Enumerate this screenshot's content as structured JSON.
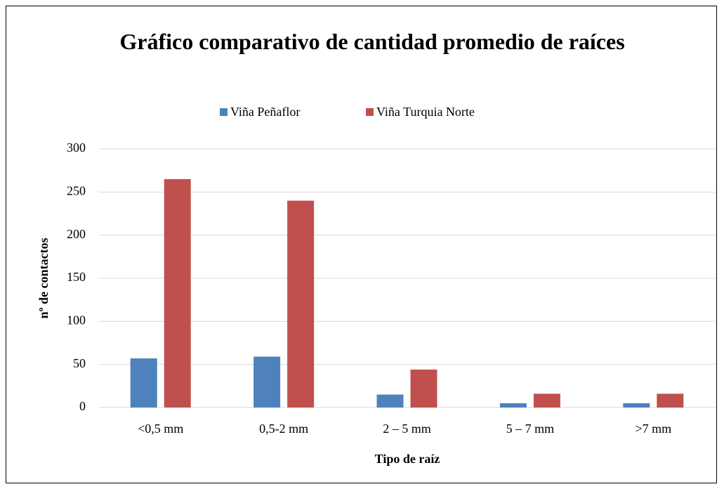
{
  "chart_data": {
    "type": "bar",
    "title": "Gráfico comparativo de cantidad promedio de raíces",
    "xlabel": "Tipo de raíz",
    "ylabel": "nº de contactos",
    "categories": [
      "<0,5 mm",
      "0,5-2 mm",
      "2 – 5 mm",
      "5 – 7 mm",
      ">7 mm"
    ],
    "series": [
      {
        "name": "Viña Peñaflor",
        "color": "#4f81bd",
        "values": [
          57,
          59,
          15,
          5,
          5
        ]
      },
      {
        "name": "Viña Turquia Norte",
        "color": "#c0504d",
        "values": [
          265,
          240,
          44,
          16,
          16
        ]
      }
    ],
    "ylim": [
      0,
      300
    ],
    "yticks": [
      0,
      50,
      100,
      150,
      200,
      250,
      300
    ],
    "grid": true
  }
}
